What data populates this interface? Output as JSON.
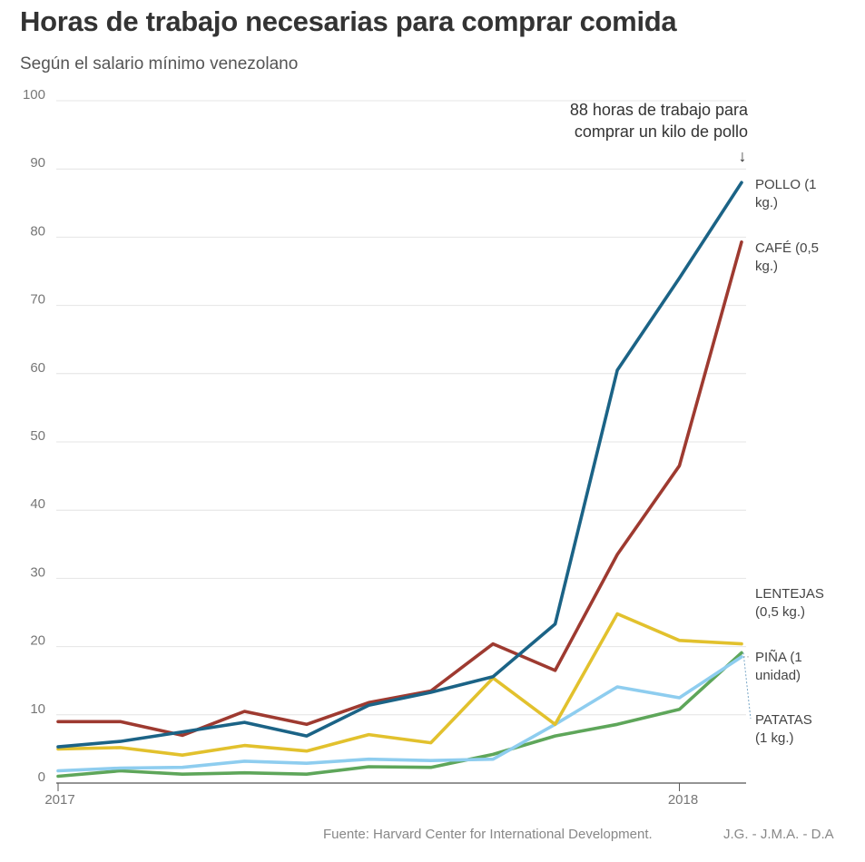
{
  "title": "Horas de trabajo necesarias para comprar comida",
  "subtitle": "Según el salario mínimo venezolano",
  "source": "Fuente: Harvard Center for International Development.",
  "credits": "J.G. - J.M.A. - D.A",
  "annotation": {
    "lines": [
      "88 horas de trabajo para",
      "comprar un kilo de pollo"
    ],
    "arrow": "↓"
  },
  "chart_data": {
    "type": "line",
    "x": [
      0,
      1,
      2,
      3,
      4,
      5,
      6,
      7,
      8,
      9,
      10,
      11
    ],
    "x_tick_labels": [
      {
        "x": 0,
        "label": "2017"
      },
      {
        "x": 10,
        "label": "2018"
      }
    ],
    "ylim": [
      0,
      100
    ],
    "y_ticks": [
      0,
      10,
      20,
      30,
      40,
      50,
      60,
      70,
      80,
      90,
      100
    ],
    "grid": true,
    "series": [
      {
        "key": "pollo",
        "name_lines": [
          "POLLO (1",
          "kg.)"
        ],
        "color": "#1b6386",
        "values": [
          5.3,
          6.1,
          7.5,
          8.9,
          6.9,
          11.4,
          13.3,
          15.6,
          23.3,
          60.5,
          74,
          88
        ]
      },
      {
        "key": "cafe",
        "name_lines": [
          "CAFÉ (0,5",
          "kg.)"
        ],
        "color": "#9e3a30",
        "values": [
          9,
          9,
          7,
          10.5,
          8.6,
          11.8,
          13.5,
          20.4,
          16.5,
          33.5,
          46.5,
          79.3
        ]
      },
      {
        "key": "lentejas",
        "name_lines": [
          "LENTEJAS",
          "(0,5 kg.)"
        ],
        "color": "#e2c12d",
        "values": [
          5,
          5.2,
          4.1,
          5.5,
          4.7,
          7.1,
          5.9,
          15.4,
          8.6,
          24.8,
          20.9,
          20.4
        ]
      },
      {
        "key": "pina",
        "name_lines": [
          "PIÑA (1",
          "unidad)"
        ],
        "color": "#8ecdef",
        "values": [
          1.8,
          2.2,
          2.3,
          3.2,
          2.9,
          3.5,
          3.3,
          3.5,
          8.6,
          14.1,
          12.5,
          18.5
        ]
      },
      {
        "key": "patatas",
        "name_lines": [
          "PATATAS",
          "(1 kg.)"
        ],
        "color": "#5ea65a",
        "values": [
          1,
          1.8,
          1.3,
          1.5,
          1.3,
          2.4,
          2.3,
          4.2,
          6.9,
          8.6,
          10.8,
          19.1
        ]
      }
    ]
  }
}
